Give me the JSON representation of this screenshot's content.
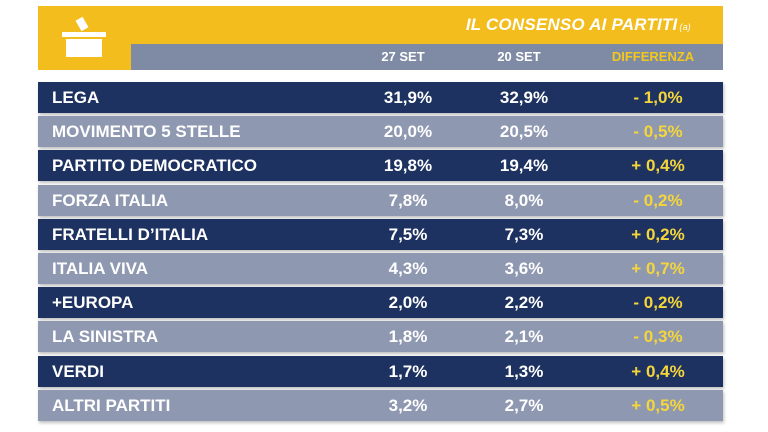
{
  "title": "IL CONSENSO AI PARTITI",
  "title_note": "(a)",
  "icon": "ballot-box-icon",
  "colors": {
    "accent": "#f2bd1d",
    "dark_row": "#1d3261",
    "light_row": "#8f98b1",
    "diff_text": "#f5d63a"
  },
  "columns": {
    "col1": "27 SET",
    "col2": "20 SET",
    "col3": "DIFFERENZA"
  },
  "rows": [
    {
      "name": "LEGA",
      "v1": "31,9%",
      "v2": "32,9%",
      "diff": "- 1,0%"
    },
    {
      "name": "MOVIMENTO 5 STELLE",
      "v1": "20,0%",
      "v2": "20,5%",
      "diff": "- 0,5%"
    },
    {
      "name": "PARTITO DEMOCRATICO",
      "v1": "19,8%",
      "v2": "19,4%",
      "diff": "+ 0,4%"
    },
    {
      "name": "FORZA ITALIA",
      "v1": "7,8%",
      "v2": "8,0%",
      "diff": "- 0,2%"
    },
    {
      "name": "FRATELLI D’ITALIA",
      "v1": "7,5%",
      "v2": "7,3%",
      "diff": "+ 0,2%"
    },
    {
      "name": "ITALIA VIVA",
      "v1": "4,3%",
      "v2": "3,6%",
      "diff": "+ 0,7%"
    },
    {
      "name": "+EUROPA",
      "v1": "2,0%",
      "v2": "2,2%",
      "diff": "- 0,2%"
    },
    {
      "name": "LA SINISTRA",
      "v1": "1,8%",
      "v2": "2,1%",
      "diff": "- 0,3%"
    },
    {
      "name": "VERDI",
      "v1": "1,7%",
      "v2": "1,3%",
      "diff": "+ 0,4%"
    },
    {
      "name": "ALTRI PARTITI",
      "v1": "3,2%",
      "v2": "2,7%",
      "diff": "+ 0,5%"
    }
  ]
}
